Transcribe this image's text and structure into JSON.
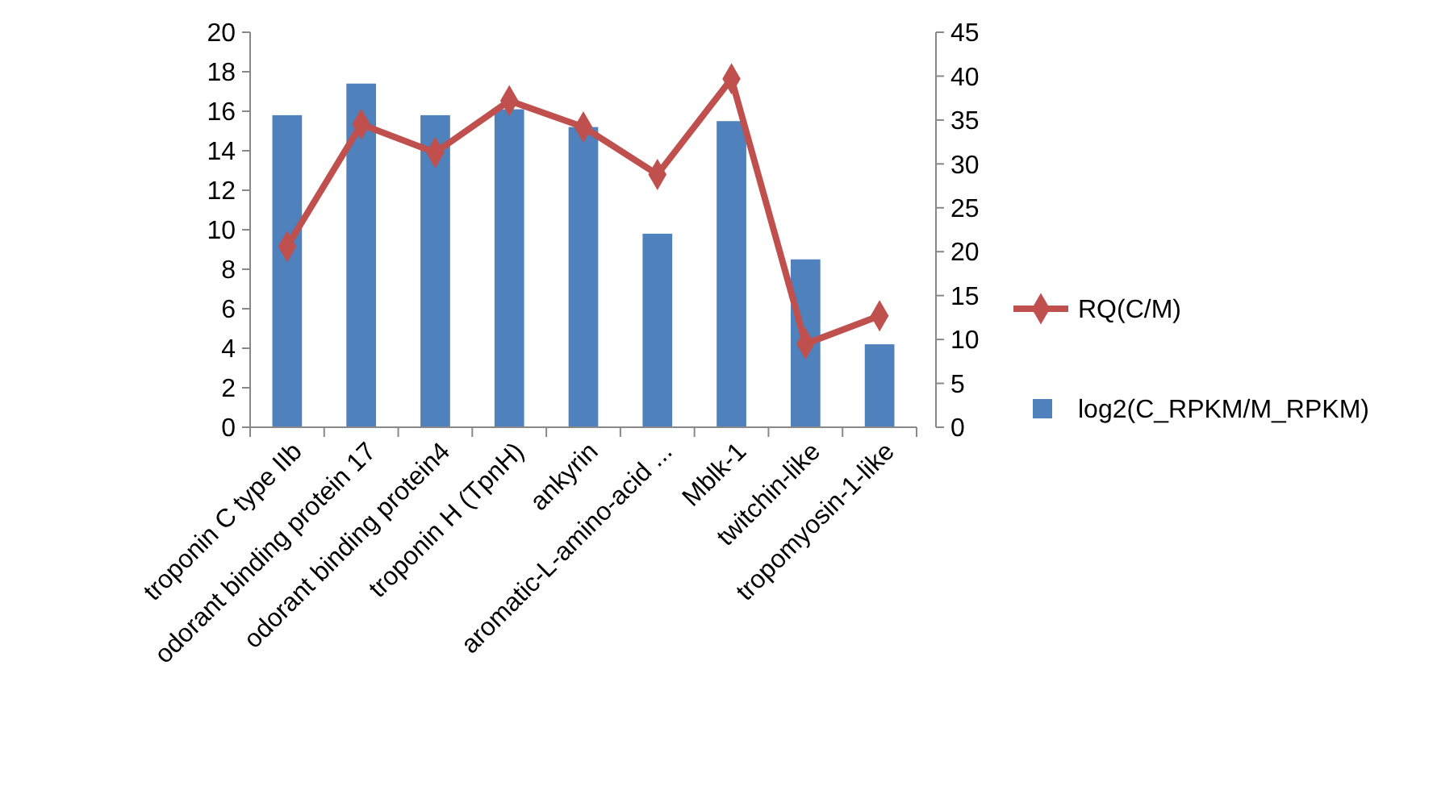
{
  "chart_data": {
    "type": "bar",
    "categories": [
      "troponin C type IIb",
      "odorant binding protein 17",
      "odorant binding protein4",
      "troponin H (TpnH)",
      "ankyrin",
      "aromatic-L-amino-acid ...",
      "Mblk-1",
      "twitchin-like",
      "tropomyosin-1-like"
    ],
    "series": [
      {
        "name": "log2(C_RPKM/M_RPKM)",
        "color": "#4f81bd",
        "values": [
          15.8,
          17.4,
          15.8,
          16.1,
          15.2,
          9.8,
          15.5,
          8.5,
          4.2
        ]
      },
      {
        "name": "RQ(C/M)",
        "type": "line",
        "axis": "y2",
        "color": "#c0504d",
        "marker": "diamond",
        "values": [
          20.6,
          34.5,
          31.3,
          37.2,
          34.2,
          28.8,
          39.7,
          9.5,
          12.7
        ]
      }
    ],
    "ylim": [
      0,
      20
    ],
    "yticks": [
      0,
      2,
      4,
      6,
      8,
      10,
      12,
      14,
      16,
      18,
      20
    ],
    "y2lim": [
      0,
      45
    ],
    "y2ticks": [
      0,
      5,
      10,
      15,
      20,
      25,
      30,
      35,
      40,
      45
    ],
    "legend": "right",
    "grid": false
  }
}
